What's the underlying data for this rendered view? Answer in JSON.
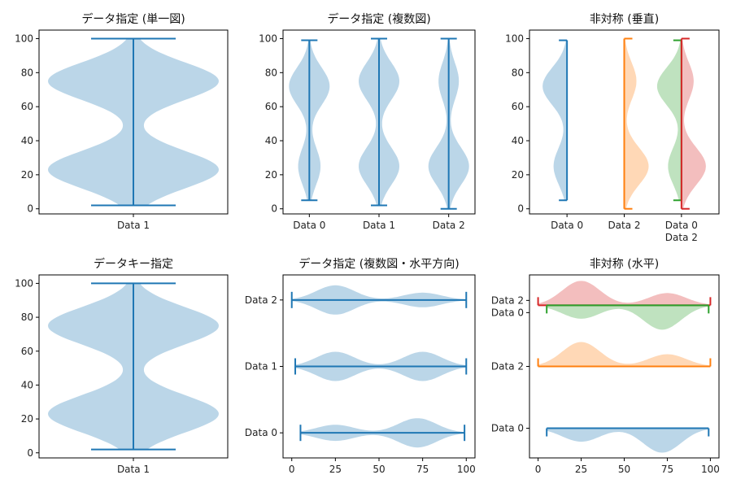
{
  "chart_data": [
    {
      "type": "violin",
      "title": "データ指定 (単一図)",
      "orientation": "vertical",
      "ylim": [
        -3,
        105
      ],
      "yticks": [
        0,
        20,
        40,
        60,
        80,
        100
      ],
      "categories": [
        "Data 1"
      ],
      "series": [
        {
          "category": "Data 1",
          "min": 2,
          "max": 100,
          "modes": [
            23,
            75
          ],
          "color": "#1f77b4"
        }
      ]
    },
    {
      "type": "violin",
      "title": "データ指定 (複数図)",
      "orientation": "vertical",
      "ylim": [
        -3,
        105
      ],
      "yticks": [
        0,
        20,
        40,
        60,
        80,
        100
      ],
      "categories": [
        "Data 0",
        "Data 1",
        "Data 2"
      ],
      "series": [
        {
          "category": "Data 0",
          "min": 5,
          "max": 99,
          "modes": [
            25,
            72
          ],
          "weights": [
            0.55,
            1.0
          ],
          "color": "#1f77b4"
        },
        {
          "category": "Data 1",
          "min": 2,
          "max": 100,
          "modes": [
            25,
            75
          ],
          "weights": [
            1.0,
            1.0
          ],
          "color": "#1f77b4"
        },
        {
          "category": "Data 2",
          "min": 0,
          "max": 100,
          "modes": [
            25,
            75
          ],
          "weights": [
            1.0,
            0.5
          ],
          "color": "#1f77b4"
        }
      ]
    },
    {
      "type": "violin",
      "title": "非対称 (垂直)",
      "orientation": "vertical",
      "ylim": [
        -3,
        105
      ],
      "yticks": [
        0,
        20,
        40,
        60,
        80,
        100
      ],
      "categories": [
        "Data 0",
        "Data 2",
        "Data 0\nData 2"
      ],
      "series": [
        {
          "name": "Data 0",
          "slot": 0,
          "side": "low",
          "min": 5,
          "max": 99,
          "modes": [
            25,
            72
          ],
          "weights": [
            0.55,
            1.0
          ],
          "color": "#1f77b4"
        },
        {
          "name": "Data 2",
          "slot": 1,
          "side": "high",
          "min": 0,
          "max": 100,
          "modes": [
            25,
            75
          ],
          "weights": [
            1.0,
            0.5
          ],
          "color": "#ff7f0e"
        },
        {
          "name": "Data 0",
          "slot": 2,
          "side": "low",
          "min": 5,
          "max": 99,
          "modes": [
            25,
            72
          ],
          "weights": [
            0.55,
            1.0
          ],
          "color": "#2ca02c"
        },
        {
          "name": "Data 2",
          "slot": 2,
          "side": "high",
          "min": 0,
          "max": 100,
          "modes": [
            25,
            75
          ],
          "weights": [
            1.0,
            0.5
          ],
          "color": "#d62728"
        }
      ]
    },
    {
      "type": "violin",
      "title": "データキー指定",
      "orientation": "vertical",
      "ylim": [
        -3,
        105
      ],
      "yticks": [
        0,
        20,
        40,
        60,
        80,
        100
      ],
      "categories": [
        "Data 1"
      ],
      "series": [
        {
          "category": "Data 1",
          "min": 2,
          "max": 100,
          "modes": [
            23,
            75
          ],
          "color": "#1f77b4"
        }
      ]
    },
    {
      "type": "violin",
      "title": "データ指定 (複数図・水平方向)",
      "orientation": "horizontal",
      "xlim": [
        -5,
        105
      ],
      "xticks": [
        0,
        25,
        50,
        75,
        100
      ],
      "categories": [
        "Data 0",
        "Data 1",
        "Data 2"
      ],
      "series": [
        {
          "category": "Data 0",
          "min": 5,
          "max": 99,
          "modes": [
            25,
            72
          ],
          "weights": [
            0.55,
            1.0
          ],
          "color": "#1f77b4"
        },
        {
          "category": "Data 1",
          "min": 2,
          "max": 100,
          "modes": [
            25,
            75
          ],
          "weights": [
            1.0,
            1.0
          ],
          "color": "#1f77b4"
        },
        {
          "category": "Data 2",
          "min": 0,
          "max": 100,
          "modes": [
            25,
            75
          ],
          "weights": [
            1.0,
            0.5
          ],
          "color": "#1f77b4"
        }
      ]
    },
    {
      "type": "violin",
      "title": "非対称 (水平)",
      "orientation": "horizontal",
      "xlim": [
        -5,
        105
      ],
      "xticks": [
        0,
        25,
        50,
        75,
        100
      ],
      "categories": [
        "Data 0",
        "Data 2",
        "Data 2",
        "Data 0"
      ],
      "series": [
        {
          "name": "Data 0",
          "slot": 0,
          "side": "low",
          "min": 5,
          "max": 99,
          "modes": [
            25,
            72
          ],
          "weights": [
            0.55,
            1.0
          ],
          "color": "#1f77b4"
        },
        {
          "name": "Data 2",
          "slot": 1,
          "side": "high",
          "min": 0,
          "max": 100,
          "modes": [
            25,
            75
          ],
          "weights": [
            1.0,
            0.5
          ],
          "color": "#ff7f0e"
        },
        {
          "name": "Data 2",
          "slot": 2,
          "side": "high",
          "min": 0,
          "max": 100,
          "modes": [
            25,
            75
          ],
          "weights": [
            1.0,
            0.5
          ],
          "color": "#d62728"
        },
        {
          "name": "Data 0",
          "slot": 2,
          "side": "low",
          "min": 5,
          "max": 99,
          "modes": [
            25,
            72
          ],
          "weights": [
            0.55,
            1.0
          ],
          "color": "#2ca02c"
        }
      ]
    }
  ]
}
